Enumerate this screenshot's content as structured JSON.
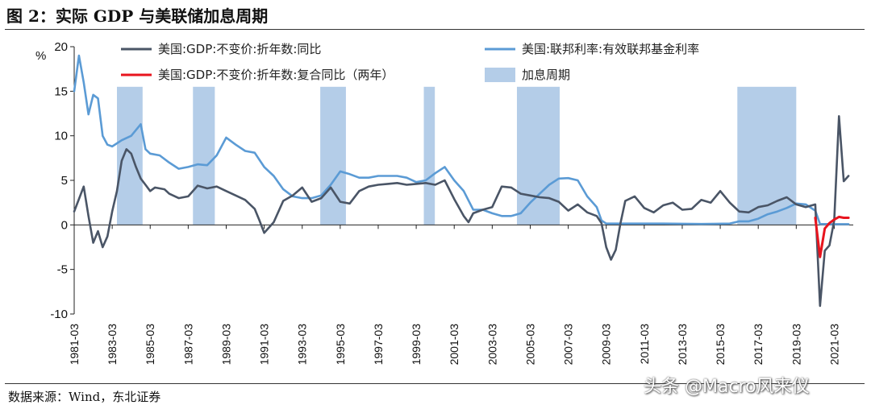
{
  "figure": {
    "title": "图 2：实际 GDP 与美联储加息周期",
    "source": "数据来源：Wind，东北证券",
    "watermark": "头条 @Macro风来仪"
  },
  "chart_data": {
    "type": "line",
    "title": "图 2：实际 GDP 与美联储加息周期",
    "ylabel": "%",
    "xlabel": "",
    "ylim": [
      -10,
      20
    ],
    "yticks": [
      -10,
      -5,
      0,
      5,
      10,
      15,
      20
    ],
    "xlim": [
      1981.0,
      2022.0
    ],
    "grid": false,
    "legend_placement": "top",
    "x_tick_labels": [
      "1981-03",
      "1983-03",
      "1985-03",
      "1987-03",
      "1989-03",
      "1991-03",
      "1993-03",
      "1995-03",
      "1997-03",
      "1999-03",
      "2001-03",
      "2003-03",
      "2005-03",
      "2007-03",
      "2009-03",
      "2011-03",
      "2013-03",
      "2015-03",
      "2017-03",
      "2019-03",
      "2021-03"
    ],
    "x_tick_values": [
      1981,
      1983,
      1985,
      1987,
      1989,
      1991,
      1993,
      1995,
      1997,
      1999,
      2001,
      2003,
      2005,
      2007,
      2009,
      2011,
      2013,
      2015,
      2017,
      2019,
      2021
    ],
    "rate_hike_periods": {
      "name": "加息周期",
      "color": "#b4cde8",
      "top": 15.5,
      "ranges": [
        [
          1983.25,
          1984.6
        ],
        [
          1987.25,
          1988.4
        ],
        [
          1993.95,
          1995.3
        ],
        [
          1999.4,
          1999.98
        ],
        [
          2004.3,
          2006.55
        ],
        [
          2015.9,
          2019.0
        ]
      ]
    },
    "series": [
      {
        "name": "美国:GDP:不变价:折年数:同比",
        "color": "#4a5566",
        "x": [
          1981.0,
          1981.5,
          1981.75,
          1982.0,
          1982.25,
          1982.5,
          1982.75,
          1983.0,
          1983.25,
          1983.5,
          1983.75,
          1984.0,
          1984.25,
          1984.5,
          1984.75,
          1985.0,
          1985.25,
          1985.5,
          1985.75,
          1986.0,
          1986.5,
          1987.0,
          1987.5,
          1988.0,
          1988.5,
          1989.0,
          1989.5,
          1990.0,
          1990.5,
          1990.75,
          1991.0,
          1991.5,
          1992.0,
          1992.5,
          1993.0,
          1993.5,
          1994.0,
          1994.5,
          1995.0,
          1995.5,
          1996.0,
          1996.5,
          1997.0,
          1997.5,
          1998.0,
          1998.5,
          1999.0,
          1999.5,
          2000.0,
          2000.5,
          2001.0,
          2001.5,
          2001.75,
          2002.0,
          2002.5,
          2003.0,
          2003.5,
          2004.0,
          2004.5,
          2005.0,
          2005.5,
          2006.0,
          2006.5,
          2007.0,
          2007.5,
          2008.0,
          2008.5,
          2008.75,
          2009.0,
          2009.25,
          2009.5,
          2009.75,
          2010.0,
          2010.5,
          2011.0,
          2011.5,
          2012.0,
          2012.5,
          2013.0,
          2013.5,
          2014.0,
          2014.5,
          2015.0,
          2015.5,
          2016.0,
          2016.5,
          2017.0,
          2017.5,
          2018.0,
          2018.5,
          2019.0,
          2019.5,
          2020.0,
          2020.25,
          2020.5,
          2020.75,
          2021.0,
          2021.25,
          2021.5,
          2021.75
        ],
        "values": [
          1.5,
          4.3,
          1.0,
          -2.0,
          -0.7,
          -2.5,
          -1.3,
          1.5,
          3.8,
          7.2,
          8.5,
          8.0,
          6.5,
          5.2,
          4.5,
          3.8,
          4.2,
          4.1,
          4.0,
          3.5,
          3.0,
          3.2,
          4.4,
          4.1,
          4.3,
          3.8,
          3.3,
          2.8,
          1.8,
          0.5,
          -0.9,
          0.3,
          2.7,
          3.3,
          4.2,
          2.6,
          3.0,
          4.2,
          2.6,
          2.4,
          3.8,
          4.3,
          4.5,
          4.6,
          4.7,
          4.5,
          4.6,
          4.7,
          4.5,
          5.0,
          2.9,
          1.0,
          0.3,
          1.3,
          1.7,
          2.0,
          4.3,
          4.2,
          3.5,
          3.3,
          3.1,
          3.0,
          2.6,
          1.6,
          2.3,
          1.4,
          1.0,
          0.2,
          -2.5,
          -3.9,
          -2.8,
          0.2,
          2.7,
          3.2,
          1.9,
          1.4,
          2.2,
          2.5,
          1.7,
          1.8,
          2.8,
          2.5,
          3.8,
          2.5,
          1.5,
          1.4,
          2.0,
          2.2,
          2.7,
          3.1,
          2.3,
          2.0,
          2.3,
          -9.1,
          -2.9,
          -2.3,
          0.5,
          12.2,
          4.9,
          5.5
        ]
      },
      {
        "name": "美国:GDP:不变价:折年数:复合同比（两年）",
        "color": "#e8141e",
        "x": [
          2020.0,
          2020.25,
          2020.5,
          2020.75,
          2021.0,
          2021.25,
          2021.5,
          2021.75
        ],
        "values": [
          0.8,
          -3.6,
          -0.4,
          0.2,
          0.6,
          0.9,
          0.8,
          0.8
        ]
      },
      {
        "name": "美国:联邦利率:有效联邦基金利率",
        "color": "#5b9bd5",
        "x": [
          1981.0,
          1981.25,
          1981.5,
          1981.75,
          1982.0,
          1982.25,
          1982.5,
          1982.75,
          1983.0,
          1983.5,
          1984.0,
          1984.5,
          1984.75,
          1985.0,
          1985.5,
          1986.0,
          1986.5,
          1987.0,
          1987.5,
          1988.0,
          1988.5,
          1989.0,
          1989.5,
          1990.0,
          1990.5,
          1991.0,
          1991.5,
          1992.0,
          1992.5,
          1993.0,
          1993.5,
          1994.0,
          1994.5,
          1995.0,
          1995.5,
          1996.0,
          1996.5,
          1997.0,
          1997.5,
          1998.0,
          1998.5,
          1999.0,
          1999.5,
          2000.0,
          2000.5,
          2001.0,
          2001.5,
          2002.0,
          2002.5,
          2003.0,
          2003.5,
          2004.0,
          2004.5,
          2005.0,
          2005.5,
          2006.0,
          2006.5,
          2007.0,
          2007.5,
          2008.0,
          2008.5,
          2008.75,
          2009.0,
          2010.0,
          2012.0,
          2014.0,
          2015.5,
          2016.0,
          2016.5,
          2017.0,
          2017.5,
          2018.0,
          2018.5,
          2019.0,
          2019.5,
          2020.0,
          2020.25,
          2021.0,
          2021.75
        ],
        "values": [
          15.0,
          19.0,
          16.0,
          12.4,
          14.6,
          14.2,
          10.0,
          9.0,
          8.8,
          9.5,
          10.0,
          11.3,
          8.5,
          8.0,
          7.8,
          7.0,
          6.3,
          6.5,
          6.8,
          6.7,
          7.8,
          9.8,
          9.0,
          8.3,
          8.1,
          6.5,
          5.5,
          4.0,
          3.2,
          3.0,
          3.0,
          3.3,
          4.5,
          6.0,
          5.7,
          5.3,
          5.3,
          5.5,
          5.5,
          5.5,
          5.3,
          4.8,
          5.0,
          5.8,
          6.5,
          5.0,
          3.8,
          1.7,
          1.7,
          1.3,
          1.0,
          1.0,
          1.3,
          2.5,
          3.5,
          4.5,
          5.2,
          5.25,
          5.0,
          3.2,
          2.0,
          0.5,
          0.15,
          0.15,
          0.15,
          0.1,
          0.15,
          0.4,
          0.4,
          0.7,
          1.2,
          1.5,
          1.9,
          2.4,
          2.3,
          1.6,
          0.1,
          0.08,
          0.08
        ]
      }
    ],
    "legend": [
      {
        "label": "美国:GDP:不变价:折年数:同比",
        "kind": "line",
        "color": "#4a5566"
      },
      {
        "label": "美国:联邦利率:有效联邦基金利率",
        "kind": "line",
        "color": "#5b9bd5"
      },
      {
        "label": "美国:GDP:不变价:折年数:复合同比（两年）",
        "kind": "line",
        "color": "#e8141e"
      },
      {
        "label": "加息周期",
        "kind": "box",
        "color": "#b4cde8"
      }
    ]
  }
}
